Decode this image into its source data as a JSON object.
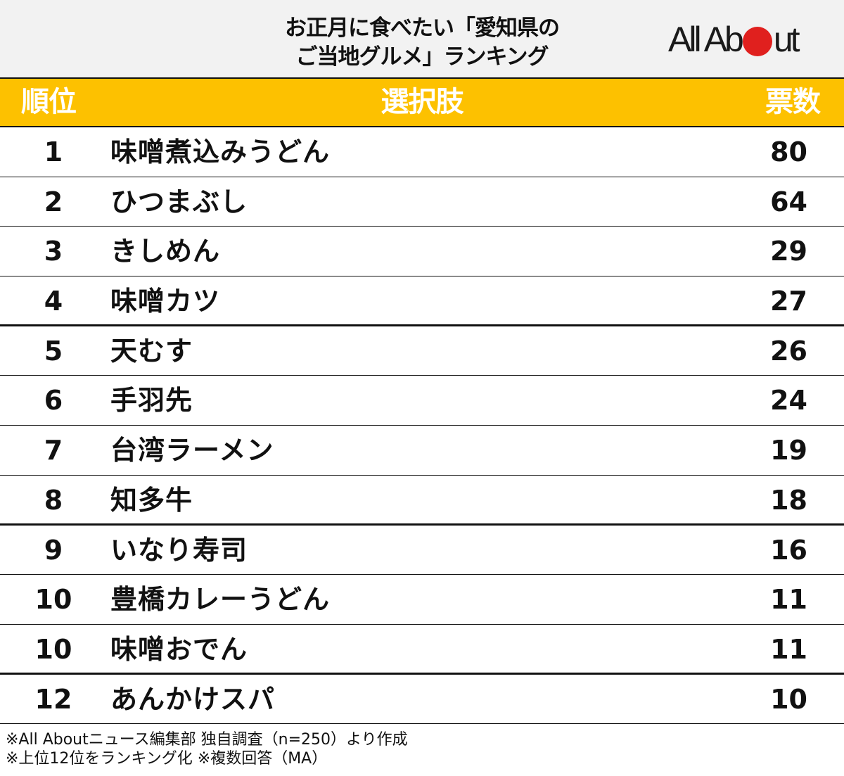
{
  "title": {
    "line1": "お正月に食べたい「愛知県の",
    "line2": "ご当地グルメ」ランキング"
  },
  "logo": {
    "text_before": "All Ab",
    "text_after": "ut",
    "dot_color": "#e0201e"
  },
  "colors": {
    "header_bg": "#fdc100",
    "title_bg": "#f2f2f2",
    "header_text": "#ffffff"
  },
  "table": {
    "headers": {
      "rank": "順位",
      "choice": "選択肢",
      "votes": "票数"
    },
    "rows": [
      {
        "rank": "1",
        "choice": "味噌煮込みうどん",
        "votes": "80"
      },
      {
        "rank": "2",
        "choice": "ひつまぶし",
        "votes": "64"
      },
      {
        "rank": "3",
        "choice": "きしめん",
        "votes": "29"
      },
      {
        "rank": "4",
        "choice": "味噌カツ",
        "votes": "27"
      },
      {
        "rank": "5",
        "choice": "天むす",
        "votes": "26"
      },
      {
        "rank": "6",
        "choice": "手羽先",
        "votes": "24"
      },
      {
        "rank": "7",
        "choice": "台湾ラーメン",
        "votes": "19"
      },
      {
        "rank": "8",
        "choice": "知多牛",
        "votes": "18"
      },
      {
        "rank": "9",
        "choice": "いなり寿司",
        "votes": "16"
      },
      {
        "rank": "10",
        "choice": "豊橋カレーうどん",
        "votes": "11"
      },
      {
        "rank": "10",
        "choice": "味噌おでん",
        "votes": "11"
      },
      {
        "rank": "12",
        "choice": "あんかけスパ",
        "votes": "10"
      }
    ]
  },
  "notes": {
    "line1": "※All Aboutニュース編集部 独自調査（n=250）より作成",
    "line2": "※上位12位をランキング化 ※複数回答（MA）"
  },
  "chart_data": {
    "type": "table",
    "title": "お正月に食べたい「愛知県のご当地グルメ」ランキング",
    "columns": [
      "順位",
      "選択肢",
      "票数"
    ],
    "categories": [
      "味噌煮込みうどん",
      "ひつまぶし",
      "きしめん",
      "味噌カツ",
      "天むす",
      "手羽先",
      "台湾ラーメン",
      "知多牛",
      "いなり寿司",
      "豊橋カレーうどん",
      "味噌おでん",
      "あんかけスパ"
    ],
    "ranks": [
      1,
      2,
      3,
      4,
      5,
      6,
      7,
      8,
      9,
      10,
      10,
      12
    ],
    "values": [
      80,
      64,
      29,
      27,
      26,
      24,
      19,
      18,
      16,
      11,
      11,
      10
    ],
    "footnotes": [
      "※All Aboutニュース編集部 独自調査（n=250）より作成",
      "※上位12位をランキング化 ※複数回答（MA）"
    ],
    "source": "All About"
  }
}
